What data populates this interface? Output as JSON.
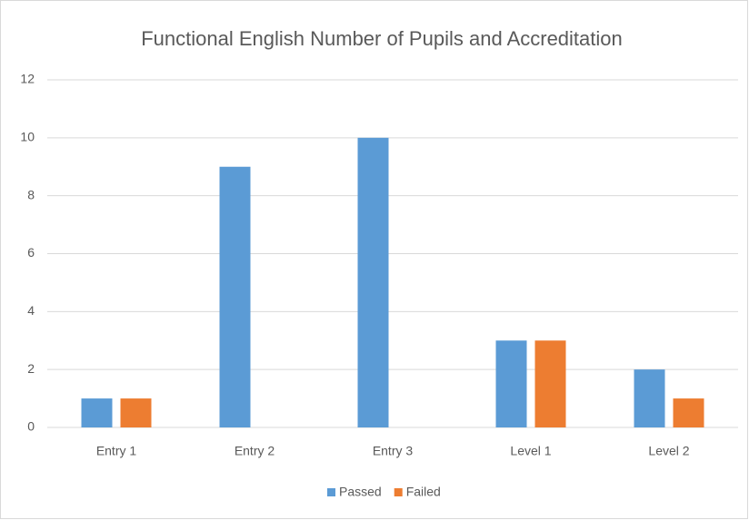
{
  "chart_data": {
    "type": "bar",
    "title": "Functional English Number of Pupils and Accreditation",
    "categories": [
      "Entry 1",
      "Entry 2",
      "Entry 3",
      "Level 1",
      "Level 2"
    ],
    "series": [
      {
        "name": "Passed",
        "color": "#5b9bd5",
        "values": [
          1,
          9,
          10,
          3,
          2
        ]
      },
      {
        "name": "Failed",
        "color": "#ed7d31",
        "values": [
          1,
          0,
          0,
          3,
          1
        ]
      }
    ],
    "ylim": [
      0,
      12
    ],
    "yticks": [
      0,
      2,
      4,
      6,
      8,
      10,
      12
    ],
    "grid": true,
    "legend": "bottom"
  }
}
